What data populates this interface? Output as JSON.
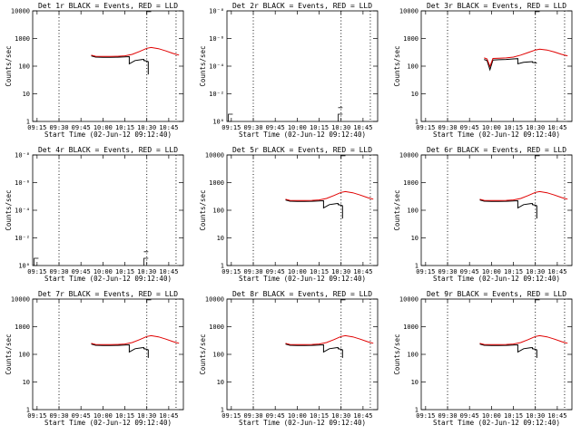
{
  "figure": {
    "colors": {
      "events": "#000000",
      "lld": "#e00000",
      "axes": "#000000",
      "background": "#ffffff"
    }
  },
  "chart_data": [
    {
      "type": "line",
      "title": "Det 1r BLACK = Events, RED = LLD",
      "xlabel": "Start Time (02-Jun-12 09:12:40)",
      "ylabel": "Counts/sec",
      "xticks": [
        "09:15",
        "09:30",
        "09:45",
        "10:00",
        "10:15",
        "10:30",
        "10:45"
      ],
      "yticks": [
        "1",
        "10",
        "100",
        "1000",
        "10000"
      ],
      "ylim": [
        1,
        15000
      ],
      "yscale": "log",
      "vlines_dotted": [
        "09:30",
        "10:30",
        "10:50"
      ],
      "series": [
        {
          "name": "Events",
          "color": "#000000",
          "x": [
            "09:52",
            "09:55",
            "10:00",
            "10:05",
            "10:10",
            "10:15",
            "10:18",
            "10:18",
            "10:22",
            "10:27",
            "10:28",
            "10:28",
            "10:30",
            "10:31",
            "10:31"
          ],
          "y": [
            300,
            270,
            265,
            265,
            268,
            275,
            280,
            150,
            200,
            220,
            220,
            200,
            190,
            180,
            60
          ]
        },
        {
          "name": "LLD",
          "color": "#e00000",
          "x": [
            "09:52",
            "09:55",
            "10:00",
            "10:05",
            "10:10",
            "10:15",
            "10:20",
            "10:25",
            "10:30",
            "10:33",
            "10:38",
            "10:43",
            "10:48",
            "10:52"
          ],
          "y": [
            320,
            290,
            285,
            285,
            290,
            300,
            340,
            440,
            580,
            620,
            560,
            460,
            370,
            320
          ]
        }
      ],
      "flat_marks": [
        {
          "x": [
            "10:30",
            "10:30",
            "10:33"
          ],
          "y": [
            11000,
            14000,
            14000
          ]
        }
      ]
    },
    {
      "type": "line",
      "title": "Det 2r BLACK = Events, RED = LLD",
      "xlabel": "Start Time (02-Jun-12 09:12:40)",
      "ylabel": "Counts/sec",
      "xticks": [
        "09:15",
        "09:30",
        "09:45",
        "10:00",
        "10:15",
        "10:30",
        "10:45"
      ],
      "yticks": [
        "10⁰",
        "10⁻²",
        "10⁻⁴",
        "10⁻⁶",
        "10⁻⁸"
      ],
      "ylim": [
        1,
        1e-08
      ],
      "yscale": "log",
      "vlines_dotted": [
        "09:30",
        "10:30",
        "10:50"
      ],
      "series": [],
      "flat_marks": [
        {
          "x": [
            "09:13",
            "09:13",
            "09:16"
          ],
          "y": [
            1,
            0.3,
            0.3
          ]
        },
        {
          "x": [
            "10:28",
            "10:28",
            "10:31"
          ],
          "y": [
            1,
            0.3,
            0.3
          ]
        },
        {
          "x": [
            "10:28",
            "10:31"
          ],
          "y": [
            0.1,
            0.1
          ]
        }
      ]
    },
    {
      "type": "line",
      "title": "Det 3r BLACK = Events, RED = LLD",
      "xlabel": "Start Time (02-Jun-12 09:12:40)",
      "ylabel": "Counts/sec",
      "xticks": [
        "09:15",
        "09:30",
        "09:45",
        "10:00",
        "10:15",
        "10:30",
        "10:45"
      ],
      "yticks": [
        "1",
        "10",
        "100",
        "1000",
        "10000"
      ],
      "ylim": [
        1,
        15000
      ],
      "yscale": "log",
      "vlines_dotted": [
        "09:30",
        "10:30",
        "10:50"
      ],
      "series": [
        {
          "name": "Events",
          "color": "#000000",
          "x": [
            "09:55",
            "09:57",
            "09:59",
            "10:01",
            "10:05",
            "10:10",
            "10:15",
            "10:18",
            "10:18",
            "10:22",
            "10:27",
            "10:28",
            "10:28",
            "10:30",
            "10:31",
            "10:31"
          ],
          "y": [
            220,
            200,
            90,
            210,
            215,
            220,
            230,
            235,
            150,
            170,
            180,
            180,
            170,
            165,
            160,
            160
          ]
        },
        {
          "name": "LLD",
          "color": "#e00000",
          "x": [
            "09:55",
            "09:57",
            "09:59",
            "10:01",
            "10:05",
            "10:10",
            "10:15",
            "10:20",
            "10:25",
            "10:30",
            "10:33",
            "10:38",
            "10:43",
            "10:48",
            "10:52"
          ],
          "y": [
            250,
            230,
            120,
            240,
            245,
            250,
            270,
            320,
            400,
            500,
            540,
            500,
            420,
            340,
            300
          ]
        }
      ],
      "flat_marks": [
        {
          "x": [
            "10:30",
            "10:30",
            "10:33"
          ],
          "y": [
            11000,
            14000,
            14000
          ]
        }
      ]
    },
    {
      "type": "line",
      "title": "Det 4r BLACK = Events, RED = LLD",
      "xlabel": "Start Time (02-Jun-12 09:12:40)",
      "ylabel": "Counts/sec",
      "xticks": [
        "09:15",
        "09:30",
        "09:45",
        "10:00",
        "10:15",
        "10:30",
        "10:45"
      ],
      "yticks": [
        "10⁰",
        "10⁻²",
        "10⁻⁴",
        "10⁻⁶",
        "10⁻⁸"
      ],
      "ylim": [
        1,
        1e-08
      ],
      "yscale": "log",
      "vlines_dotted": [
        "09:30",
        "10:30",
        "10:50"
      ],
      "series": [],
      "flat_marks": [
        {
          "x": [
            "09:13",
            "09:13",
            "09:16"
          ],
          "y": [
            1,
            0.3,
            0.3
          ]
        },
        {
          "x": [
            "10:28",
            "10:28",
            "10:31"
          ],
          "y": [
            1,
            0.3,
            0.3
          ]
        },
        {
          "x": [
            "10:28",
            "10:31"
          ],
          "y": [
            0.1,
            0.1
          ]
        }
      ]
    },
    {
      "type": "line",
      "title": "Det 5r BLACK = Events, RED = LLD",
      "xlabel": "Start Time (02-Jun-12 09:12:40)",
      "ylabel": "Counts/sec",
      "xticks": [
        "09:15",
        "09:30",
        "09:45",
        "10:00",
        "10:15",
        "10:30",
        "10:45"
      ],
      "yticks": [
        "1",
        "10",
        "100",
        "1000",
        "10000"
      ],
      "ylim": [
        1,
        15000
      ],
      "yscale": "log",
      "vlines_dotted": [
        "09:30",
        "10:30",
        "10:50"
      ],
      "series": [
        {
          "name": "Events",
          "color": "#000000",
          "x": [
            "09:52",
            "09:55",
            "10:00",
            "10:05",
            "10:10",
            "10:15",
            "10:18",
            "10:18",
            "10:22",
            "10:27",
            "10:28",
            "10:28",
            "10:30",
            "10:31",
            "10:31"
          ],
          "y": [
            300,
            270,
            265,
            265,
            268,
            275,
            280,
            150,
            200,
            220,
            220,
            200,
            190,
            180,
            60
          ]
        },
        {
          "name": "LLD",
          "color": "#e00000",
          "x": [
            "09:52",
            "09:55",
            "10:00",
            "10:05",
            "10:10",
            "10:15",
            "10:20",
            "10:25",
            "10:30",
            "10:33",
            "10:38",
            "10:43",
            "10:48",
            "10:52"
          ],
          "y": [
            320,
            290,
            285,
            285,
            290,
            300,
            340,
            440,
            580,
            620,
            560,
            460,
            370,
            320
          ]
        }
      ],
      "flat_marks": [
        {
          "x": [
            "10:30",
            "10:30",
            "10:33"
          ],
          "y": [
            11000,
            14000,
            14000
          ]
        }
      ]
    },
    {
      "type": "line",
      "title": "Det 6r BLACK = Events, RED = LLD",
      "xlabel": "Start Time (02-Jun-12 09:12:40)",
      "ylabel": "Counts/sec",
      "xticks": [
        "09:15",
        "09:30",
        "09:45",
        "10:00",
        "10:15",
        "10:30",
        "10:45"
      ],
      "yticks": [
        "1",
        "10",
        "100",
        "1000",
        "10000"
      ],
      "ylim": [
        1,
        15000
      ],
      "yscale": "log",
      "vlines_dotted": [
        "09:30",
        "10:30",
        "10:50"
      ],
      "series": [
        {
          "name": "Events",
          "color": "#000000",
          "x": [
            "09:52",
            "09:55",
            "10:00",
            "10:05",
            "10:10",
            "10:15",
            "10:18",
            "10:18",
            "10:22",
            "10:27",
            "10:28",
            "10:28",
            "10:30",
            "10:31",
            "10:31"
          ],
          "y": [
            300,
            270,
            265,
            265,
            268,
            275,
            280,
            150,
            200,
            220,
            220,
            200,
            190,
            180,
            60
          ]
        },
        {
          "name": "LLD",
          "color": "#e00000",
          "x": [
            "09:52",
            "09:55",
            "10:00",
            "10:05",
            "10:10",
            "10:15",
            "10:20",
            "10:25",
            "10:30",
            "10:33",
            "10:38",
            "10:43",
            "10:48",
            "10:52"
          ],
          "y": [
            320,
            290,
            285,
            285,
            290,
            300,
            340,
            440,
            580,
            620,
            560,
            460,
            370,
            320
          ]
        }
      ],
      "flat_marks": [
        {
          "x": [
            "10:30",
            "10:30",
            "10:33"
          ],
          "y": [
            11000,
            14000,
            14000
          ]
        }
      ]
    },
    {
      "type": "line",
      "title": "Det 7r BLACK = Events, RED = LLD",
      "xlabel": "Start Time (02-Jun-12 09:12:40)",
      "ylabel": "Counts/sec",
      "xticks": [
        "09:15",
        "09:30",
        "09:45",
        "10:00",
        "10:15",
        "10:30",
        "10:45"
      ],
      "yticks": [
        "1",
        "10",
        "100",
        "1000",
        "10000"
      ],
      "ylim": [
        1,
        15000
      ],
      "yscale": "log",
      "vlines_dotted": [
        "09:30",
        "10:30",
        "10:50"
      ],
      "series": [
        {
          "name": "Events",
          "color": "#000000",
          "x": [
            "09:52",
            "09:55",
            "10:00",
            "10:05",
            "10:10",
            "10:15",
            "10:18",
            "10:18",
            "10:22",
            "10:27",
            "10:28",
            "10:28",
            "10:30",
            "10:31",
            "10:31"
          ],
          "y": [
            300,
            270,
            265,
            265,
            268,
            275,
            280,
            150,
            200,
            220,
            220,
            200,
            190,
            180,
            90
          ]
        },
        {
          "name": "LLD",
          "color": "#e00000",
          "x": [
            "09:52",
            "09:55",
            "10:00",
            "10:05",
            "10:10",
            "10:15",
            "10:20",
            "10:25",
            "10:30",
            "10:33",
            "10:38",
            "10:43",
            "10:48",
            "10:52"
          ],
          "y": [
            320,
            290,
            285,
            285,
            290,
            300,
            340,
            440,
            580,
            620,
            560,
            460,
            370,
            320
          ]
        }
      ],
      "flat_marks": [
        {
          "x": [
            "10:30",
            "10:30",
            "10:33"
          ],
          "y": [
            11000,
            14000,
            14000
          ]
        }
      ]
    },
    {
      "type": "line",
      "title": "Det 8r BLACK = Events, RED = LLD",
      "xlabel": "Start Time (02-Jun-12 09:12:40)",
      "ylabel": "Counts/sec",
      "xticks": [
        "09:15",
        "09:30",
        "09:45",
        "10:00",
        "10:15",
        "10:30",
        "10:45"
      ],
      "yticks": [
        "1",
        "10",
        "100",
        "1000",
        "10000"
      ],
      "ylim": [
        1,
        15000
      ],
      "yscale": "log",
      "vlines_dotted": [
        "09:30",
        "10:30",
        "10:50"
      ],
      "series": [
        {
          "name": "Events",
          "color": "#000000",
          "x": [
            "09:52",
            "09:55",
            "10:00",
            "10:05",
            "10:10",
            "10:15",
            "10:18",
            "10:18",
            "10:22",
            "10:27",
            "10:28",
            "10:28",
            "10:30",
            "10:31",
            "10:31"
          ],
          "y": [
            300,
            270,
            265,
            265,
            268,
            275,
            280,
            150,
            200,
            220,
            220,
            200,
            190,
            180,
            90
          ]
        },
        {
          "name": "LLD",
          "color": "#e00000",
          "x": [
            "09:52",
            "09:55",
            "10:00",
            "10:05",
            "10:10",
            "10:15",
            "10:20",
            "10:25",
            "10:30",
            "10:33",
            "10:38",
            "10:43",
            "10:48",
            "10:52"
          ],
          "y": [
            320,
            290,
            285,
            285,
            290,
            300,
            340,
            440,
            580,
            620,
            560,
            460,
            370,
            320
          ]
        }
      ],
      "flat_marks": [
        {
          "x": [
            "10:30",
            "10:30",
            "10:33"
          ],
          "y": [
            11000,
            14000,
            14000
          ]
        }
      ]
    },
    {
      "type": "line",
      "title": "Det 9r BLACK = Events, RED = LLD",
      "xlabel": "Start Time (02-Jun-12 09:12:40)",
      "ylabel": "Counts/sec",
      "xticks": [
        "09:15",
        "09:30",
        "09:45",
        "10:00",
        "10:15",
        "10:30",
        "10:45"
      ],
      "yticks": [
        "1",
        "10",
        "100",
        "1000",
        "10000"
      ],
      "ylim": [
        1,
        15000
      ],
      "yscale": "log",
      "vlines_dotted": [
        "09:30",
        "10:30",
        "10:50"
      ],
      "series": [
        {
          "name": "Events",
          "color": "#000000",
          "x": [
            "09:52",
            "09:55",
            "10:00",
            "10:05",
            "10:10",
            "10:15",
            "10:18",
            "10:18",
            "10:22",
            "10:27",
            "10:28",
            "10:28",
            "10:30",
            "10:31",
            "10:31"
          ],
          "y": [
            300,
            270,
            265,
            265,
            268,
            275,
            280,
            150,
            200,
            220,
            220,
            200,
            190,
            180,
            90
          ]
        },
        {
          "name": "LLD",
          "color": "#e00000",
          "x": [
            "09:52",
            "09:55",
            "10:00",
            "10:05",
            "10:10",
            "10:15",
            "10:20",
            "10:25",
            "10:30",
            "10:33",
            "10:38",
            "10:43",
            "10:48",
            "10:52"
          ],
          "y": [
            320,
            290,
            285,
            285,
            290,
            300,
            340,
            440,
            580,
            620,
            560,
            460,
            370,
            320
          ]
        }
      ],
      "flat_marks": [
        {
          "x": [
            "10:30",
            "10:30",
            "10:33"
          ],
          "y": [
            11000,
            14000,
            14000
          ]
        }
      ]
    }
  ]
}
